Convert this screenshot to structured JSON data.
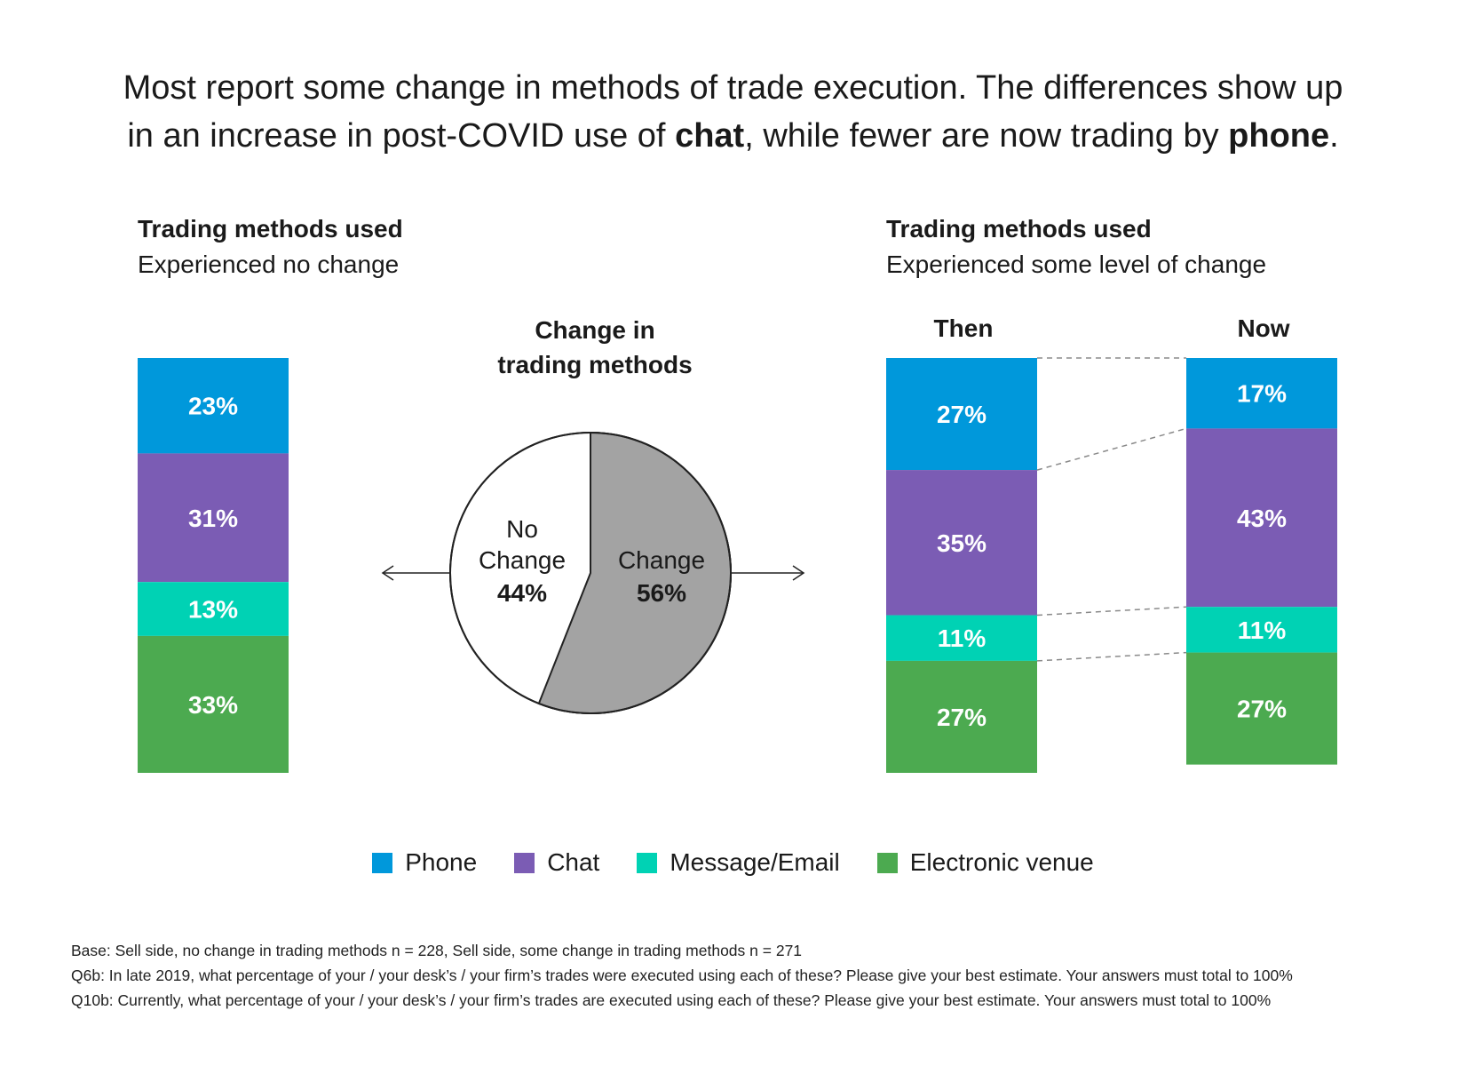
{
  "headline": {
    "line1": "Most report some change in methods of trade execution. The differences show up",
    "line2_pre": "in an increase in post-COVID use of ",
    "line2_chat": "chat",
    "line2_mid": ", while fewer are now trading by ",
    "line2_phone": "phone",
    "line2_end": "."
  },
  "left_panel": {
    "title": "Trading methods used",
    "subtitle": "Experienced no change"
  },
  "right_panel": {
    "title": "Trading methods used",
    "subtitle": "Experienced some level of change",
    "then_label": "Then",
    "now_label": "Now"
  },
  "pie_title": {
    "line1": "Change in",
    "line2": "trading methods"
  },
  "colors": {
    "phone": "#0098db",
    "chat": "#7b5cb4",
    "message": "#00d2b4",
    "electronic": "#4caa50",
    "change": "#a3a3a3",
    "no_change": "#ffffff"
  },
  "chart_data": [
    {
      "type": "bar",
      "stacked": true,
      "panel": "no-change",
      "categories": [
        "Experienced no change"
      ],
      "series": [
        {
          "name": "Phone",
          "values": [
            23
          ],
          "label": "23%"
        },
        {
          "name": "Chat",
          "values": [
            31
          ],
          "label": "31%"
        },
        {
          "name": "Message/Email",
          "values": [
            13
          ],
          "label": "13%"
        },
        {
          "name": "Electronic venue",
          "values": [
            33
          ],
          "label": "33%"
        }
      ]
    },
    {
      "type": "pie",
      "title": "Change in trading methods",
      "slices": [
        {
          "name": "No Change",
          "value": 44,
          "label": "44%"
        },
        {
          "name": "Change",
          "value": 56,
          "label": "56%"
        }
      ]
    },
    {
      "type": "bar",
      "stacked": true,
      "panel": "some-change",
      "categories": [
        "Then",
        "Now"
      ],
      "series": [
        {
          "name": "Phone",
          "values": [
            27,
            17
          ],
          "labels": [
            "27%",
            "17%"
          ]
        },
        {
          "name": "Chat",
          "values": [
            35,
            43
          ],
          "labels": [
            "35%",
            "43%"
          ]
        },
        {
          "name": "Message/Email",
          "values": [
            11,
            11
          ],
          "labels": [
            "11%",
            "11%"
          ]
        },
        {
          "name": "Electronic venue",
          "values": [
            27,
            27
          ],
          "labels": [
            "27%",
            "27%"
          ]
        }
      ]
    }
  ],
  "legend": [
    {
      "label": "Phone",
      "color": "#0098db"
    },
    {
      "label": "Chat",
      "color": "#7b5cb4"
    },
    {
      "label": "Message/Email",
      "color": "#00d2b4"
    },
    {
      "label": "Electronic venue",
      "color": "#4caa50"
    }
  ],
  "footnotes": [
    "Base: Sell side, no change in trading methods n = 228, Sell side, some change in trading methods n = 271",
    "Q6b: In late 2019, what percentage of your / your desk’s / your firm’s trades were executed using each of these? Please give your best estimate. Your answers must total to 100%",
    "Q10b: Currently, what percentage of your / your desk’s / your firm’s trades are executed using each of these? Please give your best estimate. Your answers must total to 100%"
  ]
}
